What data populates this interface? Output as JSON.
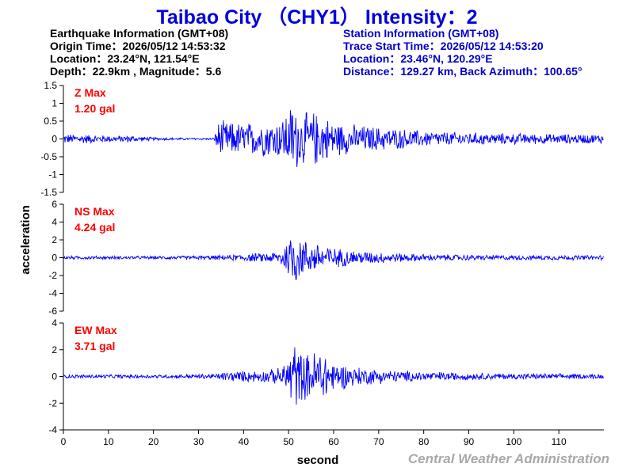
{
  "title": "Taibao City （CHY1） Intensity：2",
  "earthquake": {
    "heading": "Earthquake Information  (GMT+08)",
    "origin_time": "Origin Time：2026/05/12 14:53:32",
    "location": "Location：23.24°N, 121.54°E",
    "depth_magnitude": "Depth：22.9km , Magnitude：5.6"
  },
  "station": {
    "heading": "Station Information  (GMT+08)",
    "trace_start": "Trace Start Time：2026/05/12 14:53:20",
    "location": "Location：23.46°N, 120.29°E",
    "distance": "Distance：129.27 km, Back Azimuth：100.65°"
  },
  "footer": "Central Weather Administration",
  "colors": {
    "title": "#0000dd",
    "trace": "#0000ff",
    "max_label": "#ff0000",
    "station_text": "#0000cc",
    "footer": "#a9a9a9"
  },
  "chart_data": {
    "type": "line",
    "xlabel": "second",
    "ylabel": "acceleration",
    "xlim": [
      0,
      120
    ],
    "xticks": [
      0,
      10,
      20,
      30,
      40,
      50,
      60,
      70,
      80,
      90,
      100,
      110
    ],
    "grid": false,
    "panels": [
      {
        "component": "Z",
        "max_label": "Z Max",
        "max_value": "1.20 gal",
        "ylim": [
          -1.5,
          1.5
        ],
        "yticks": [
          -1.5,
          -1,
          -0.5,
          0,
          0.5,
          1,
          1.5
        ],
        "envelope": {
          "x": [
            0,
            4,
            8,
            12,
            15,
            17,
            20,
            25,
            30,
            33.5,
            34,
            35,
            40,
            45,
            48,
            50,
            51,
            52,
            54,
            56,
            58,
            60,
            64,
            68,
            72,
            76,
            80,
            85,
            90,
            95,
            100,
            110,
            120
          ],
          "amplitude": [
            0.15,
            0.15,
            0.12,
            0.1,
            0.12,
            0.08,
            0.05,
            0.04,
            0.03,
            0.03,
            0.5,
            0.55,
            0.5,
            0.55,
            0.6,
            0.9,
            1.2,
            0.9,
            0.8,
            0.85,
            0.7,
            0.55,
            0.45,
            0.4,
            0.35,
            0.3,
            0.25,
            0.22,
            0.2,
            0.18,
            0.17,
            0.15,
            0.15
          ]
        }
      },
      {
        "component": "NS",
        "max_label": "NS Max",
        "max_value": "4.24 gal",
        "ylim": [
          -6,
          6
        ],
        "yticks": [
          -6,
          -4,
          -2,
          0,
          2,
          4,
          6
        ],
        "envelope": {
          "x": [
            0,
            10,
            20,
            30,
            35,
            40,
            45,
            48,
            50,
            51,
            52,
            53,
            55,
            57,
            60,
            65,
            70,
            75,
            80,
            90,
            100,
            110,
            120
          ],
          "amplitude": [
            0.2,
            0.2,
            0.2,
            0.25,
            0.3,
            0.45,
            0.6,
            0.8,
            2.5,
            4.24,
            2.8,
            2.5,
            1.8,
            2.0,
            1.2,
            0.9,
            0.7,
            0.55,
            0.45,
            0.35,
            0.3,
            0.3,
            0.3
          ]
        }
      },
      {
        "component": "EW",
        "max_label": "EW Max",
        "max_value": "3.71 gal",
        "ylim": [
          -4,
          4
        ],
        "yticks": [
          -4,
          -2,
          0,
          2,
          4
        ],
        "envelope": {
          "x": [
            0,
            10,
            20,
            30,
            34,
            36,
            40,
            45,
            48,
            50,
            51,
            52,
            54,
            56,
            57,
            60,
            65,
            70,
            75,
            80,
            90,
            100,
            110,
            120
          ],
          "amplitude": [
            0.15,
            0.15,
            0.15,
            0.18,
            0.25,
            0.4,
            0.45,
            0.5,
            0.7,
            1.5,
            3.71,
            2.2,
            1.8,
            2.2,
            2.5,
            1.2,
            0.8,
            0.6,
            0.45,
            0.4,
            0.3,
            0.25,
            0.22,
            0.2
          ]
        }
      }
    ]
  }
}
